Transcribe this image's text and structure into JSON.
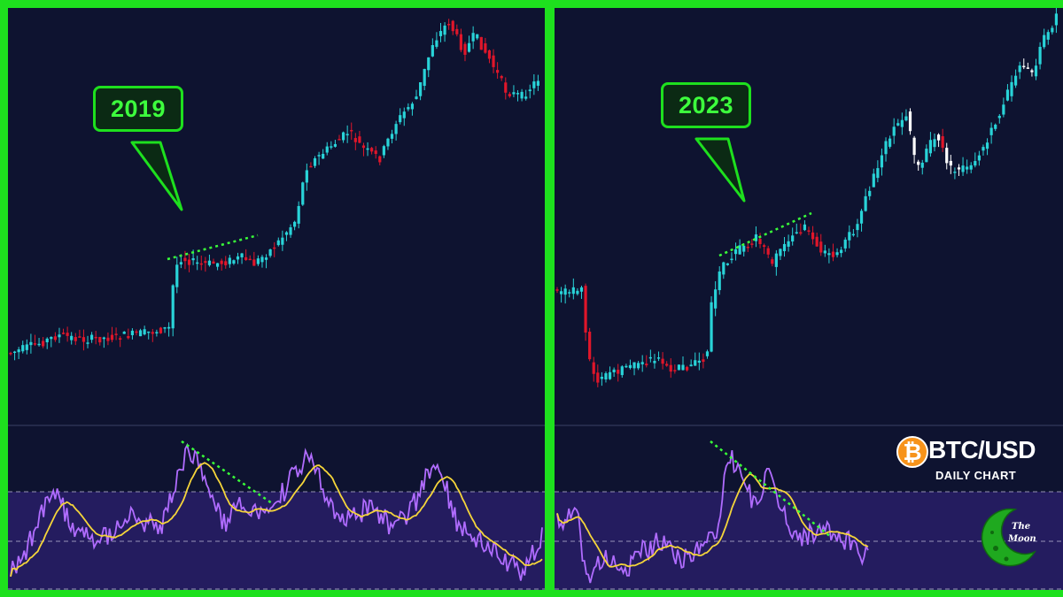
{
  "chart_data": [
    {
      "type": "candlestick_with_rsi",
      "label": "2019",
      "price_series": {
        "name": "BTC/USD daily candles",
        "up_color": "#29d3d8",
        "down_color": "#e0162a"
      },
      "rsi_series": [
        {
          "name": "RSI",
          "color": "#b06cff"
        },
        {
          "name": "RSI moving average",
          "color": "#f5d53a"
        }
      ],
      "rsi_band": {
        "upper": 70,
        "middle": 50,
        "lower": 30
      },
      "annotations": [
        {
          "type": "rising trendline on price",
          "color": "#39ff39"
        },
        {
          "type": "falling trendline on RSI",
          "color": "#39ff39"
        }
      ],
      "divergence": "bearish"
    },
    {
      "type": "candlestick_with_rsi",
      "label": "2023",
      "price_series": {
        "name": "BTC/USD daily candles",
        "up_color": "#29d3d8",
        "down_color": "#e0162a",
        "late_candle_color": "#ffffff"
      },
      "rsi_series": [
        {
          "name": "RSI",
          "color": "#b06cff"
        },
        {
          "name": "RSI moving average",
          "color": "#f5d53a"
        }
      ],
      "rsi_band": {
        "upper": 70,
        "middle": 50,
        "lower": 30
      },
      "annotations": [
        {
          "type": "rising trendline on price",
          "color": "#39ff39"
        },
        {
          "type": "falling trendline on RSI",
          "color": "#39ff39"
        }
      ],
      "divergence": "bearish"
    }
  ],
  "panels": [
    {
      "year_label": "2019"
    },
    {
      "year_label": "2023"
    }
  ],
  "ticker": {
    "symbol": "BTC/USD",
    "coin_glyph": "₿",
    "timeframe": "DAILY CHART"
  },
  "brand": {
    "logo_text_1": "The",
    "logo_text_2": "Moon",
    "icon": "moon-logo-icon"
  },
  "colors": {
    "frame": "#1ee01e",
    "background": "#0e1330",
    "rsi_band_fill": "#2a1f6b",
    "up_candle": "#29d3d8",
    "down_candle": "#e0162a",
    "rsi_line": "#b06cff",
    "rsi_ma": "#f5d53a",
    "trendline": "#39ff39"
  }
}
